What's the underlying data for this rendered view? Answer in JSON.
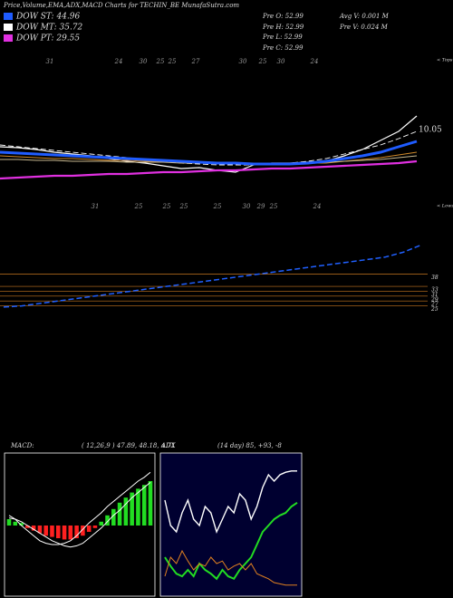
{
  "chart_data": [
    {
      "type": "line",
      "title": "Price,Volume,EMA,ADX,MACD Charts for TECHIN_BE MunafaSutra.com",
      "info": [
        "Pre O: 52.99",
        "Pre H: 52.99",
        "Pre L: 52.99",
        "Pre C: 52.99",
        "Avg V: 0.001 M",
        "Pre V: 0.024 M"
      ],
      "price_label": "10.05",
      "tops_label": "< Tops",
      "tops": [
        "31",
        "24",
        "30",
        "25",
        "25",
        "27",
        "30",
        "25",
        "30",
        "24"
      ],
      "lows_label": "< Lows",
      "lows": [
        "31",
        "25",
        "25",
        "25",
        "25",
        "30",
        "29",
        "25",
        "24"
      ],
      "ylim": [
        0,
        170
      ],
      "series": [
        {
          "color": "#ffffff",
          "values": [
            68,
            67,
            65,
            62,
            60,
            58,
            55,
            52,
            50,
            47,
            44,
            45,
            42,
            40,
            48,
            50,
            50,
            51,
            52,
            58,
            65,
            75,
            85,
            102
          ]
        },
        {
          "color": "#ffffff",
          "style": "dashed",
          "values": [
            70,
            68,
            66,
            64,
            62,
            60,
            58,
            56,
            54,
            52,
            50,
            49,
            48,
            48,
            48,
            49,
            50,
            52,
            55,
            60,
            65,
            70,
            77,
            85
          ]
        },
        {
          "color": "#d08a2a",
          "values": [
            58,
            57,
            56,
            55,
            55,
            54,
            53,
            53,
            52,
            52,
            51,
            50,
            50,
            49,
            49,
            49,
            49,
            50,
            50,
            52,
            54,
            56,
            59,
            62
          ]
        },
        {
          "color": "#c8b890",
          "values": [
            54,
            54,
            53,
            53,
            52,
            52,
            52,
            51,
            51,
            51,
            50,
            50,
            50,
            50,
            50,
            50,
            50,
            50,
            51,
            52,
            53,
            54,
            56,
            58
          ]
        },
        {
          "name": "DOW ST: 44.96",
          "color": "#1f5cff",
          "values": [
            62,
            61,
            60,
            59,
            58,
            57,
            56,
            55,
            54,
            53,
            52,
            51,
            50,
            50,
            49,
            49,
            49,
            50,
            52,
            55,
            58,
            62,
            68,
            74
          ]
        },
        {
          "name": "DOW MT: 35.72",
          "color": "#ffffff"
        },
        {
          "name": "DOW PT: 29.55",
          "color": "#e030e0",
          "values": [
            33,
            34,
            35,
            36,
            36,
            37,
            38,
            38,
            39,
            40,
            40,
            41,
            42,
            42,
            43,
            44,
            44,
            45,
            46,
            47,
            48,
            49,
            50,
            52
          ]
        }
      ]
    },
    {
      "type": "line",
      "ylim": [
        20,
        65
      ],
      "yticks": [
        38,
        33,
        31,
        29,
        27,
        25
      ],
      "grid": true,
      "grid_color": "#c87820",
      "series": [
        {
          "color": "#2060ff",
          "style": "dashed",
          "values": [
            24.5,
            25,
            26,
            27,
            28,
            29,
            30,
            31,
            32,
            33,
            34,
            35,
            36,
            37,
            38,
            39,
            40,
            41,
            42,
            43,
            44,
            45,
            47,
            50
          ]
        }
      ]
    },
    {
      "type": "macd",
      "title": "MACD:",
      "subtitle": "( 12,26,9 ) 47.89, 48.18, 4.71",
      "ylim": [
        -50,
        50
      ],
      "histogram": [
        5,
        3,
        2,
        -2,
        -4,
        -6,
        -8,
        -9,
        -10,
        -11,
        -11,
        -10,
        -8,
        -5,
        -2,
        3,
        8,
        13,
        18,
        22,
        26,
        29,
        32,
        35
      ],
      "series": [
        {
          "color": "#ffffff",
          "values": [
            8,
            5,
            0,
            -4,
            -8,
            -12,
            -14,
            -15,
            -15,
            -14,
            -12,
            -8,
            -3,
            2,
            6,
            10,
            15,
            19,
            23,
            27,
            31,
            35,
            38,
            42
          ]
        },
        {
          "color": "#ffffff",
          "values": [
            6,
            5,
            3,
            0,
            -3,
            -6,
            -9,
            -12,
            -14,
            -16,
            -17,
            -16,
            -14,
            -10,
            -6,
            -2,
            3,
            8,
            12,
            17,
            22,
            26,
            30,
            34
          ]
        }
      ]
    },
    {
      "type": "line",
      "title": "ADX",
      "subtitle": "(14 day) 85, +93, -8",
      "ylim": [
        0,
        100
      ],
      "background": "#000030",
      "series": [
        {
          "color": "#ffffff",
          "values": [
            70,
            50,
            45,
            60,
            70,
            55,
            50,
            65,
            60,
            45,
            55,
            65,
            60,
            75,
            70,
            55,
            65,
            80,
            90,
            85,
            90,
            92,
            93,
            93
          ]
        },
        {
          "color": "#22dd22",
          "values": [
            25,
            18,
            12,
            10,
            15,
            10,
            20,
            15,
            12,
            8,
            15,
            10,
            8,
            15,
            20,
            25,
            35,
            45,
            50,
            55,
            58,
            60,
            65,
            68
          ]
        },
        {
          "color": "#e08020",
          "values": [
            10,
            25,
            20,
            30,
            22,
            15,
            20,
            18,
            25,
            20,
            22,
            15,
            18,
            20,
            15,
            20,
            12,
            10,
            8,
            5,
            4,
            3,
            3,
            3
          ]
        }
      ]
    }
  ]
}
